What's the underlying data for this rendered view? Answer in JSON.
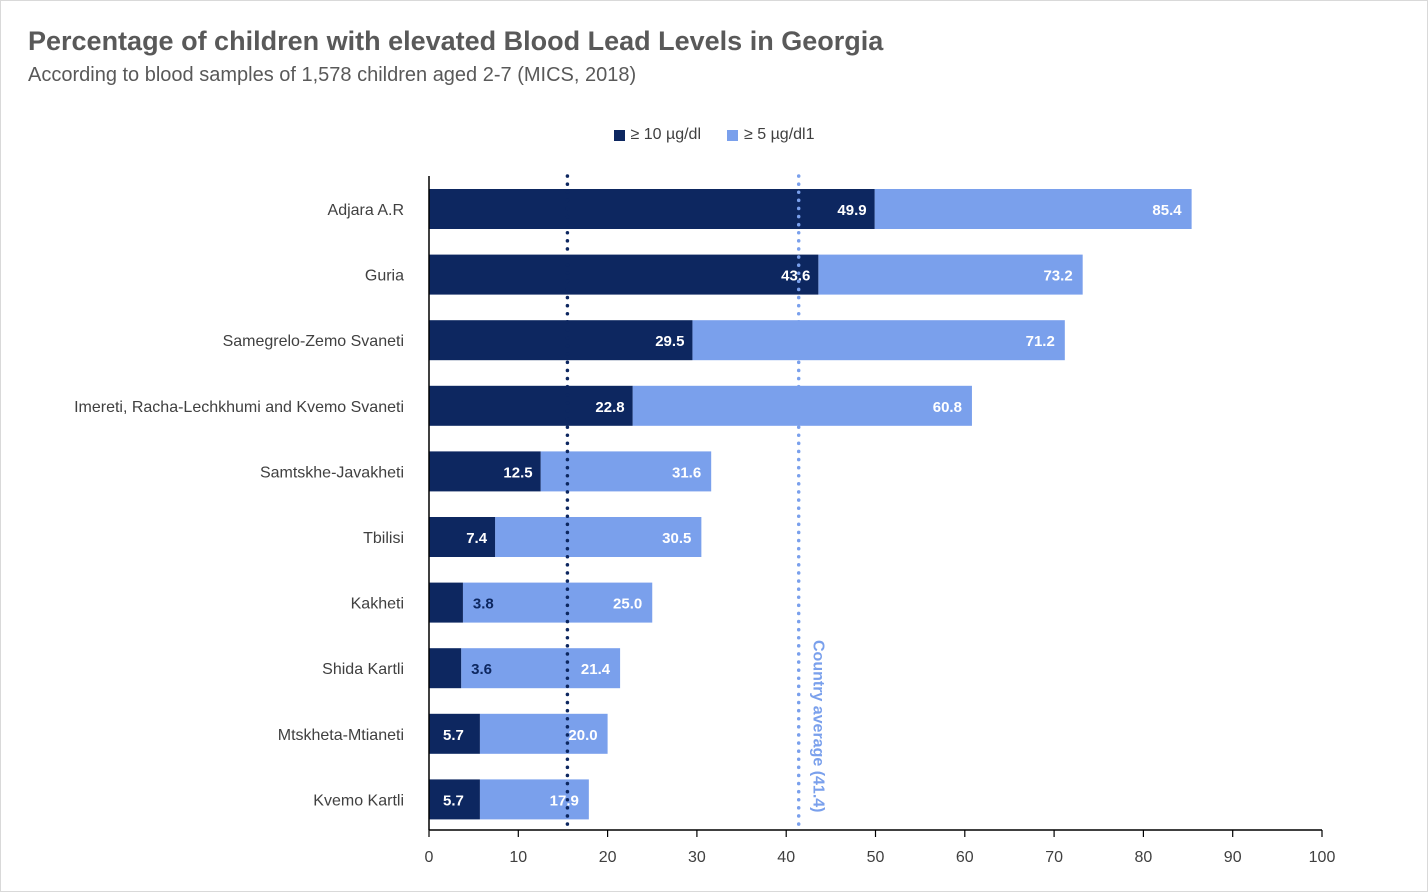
{
  "chart_data": {
    "type": "bar",
    "orientation": "horizontal",
    "title": "Percentage of children with elevated Blood Lead Levels in Georgia",
    "subtitle": "According to blood samples of 1,578 children aged 2-7 (MICS, 2018)",
    "categories": [
      "Adjara A.R",
      "Guria",
      "Samegrelo-Zemo Svaneti",
      "Imereti, Racha-Lechkhumi and Kvemo Svaneti",
      "Samtskhe-Javakheti",
      "Tbilisi",
      "Kakheti",
      "Shida Kartli",
      "Mtskheta-Mtianeti",
      "Kvemo Kartli"
    ],
    "series": [
      {
        "name": "≥ 10 µg/dl",
        "color": "#0d2760",
        "values": [
          49.9,
          43.6,
          29.5,
          22.8,
          12.5,
          7.4,
          3.8,
          3.6,
          5.7,
          5.7
        ],
        "labels": [
          "49.9",
          "43.6",
          "29.5",
          "22.8",
          "12.5",
          "7.4",
          "3.8",
          "3.6",
          "5.7",
          "5.7"
        ]
      },
      {
        "name": "≥ 5 µg/dl1",
        "color": "#7aa0ec",
        "values": [
          85.4,
          73.2,
          71.2,
          60.8,
          31.6,
          30.5,
          25.0,
          21.4,
          20.0,
          17.9
        ],
        "labels": [
          "85.4",
          "73.2",
          "71.2",
          "60.8",
          "31.6",
          "30.5",
          "25.0",
          "21.4",
          "20.0",
          "17.9"
        ]
      }
    ],
    "xlim": [
      0,
      100
    ],
    "xticks": [
      "0",
      "10",
      "20",
      "30",
      "40",
      "50",
      "60",
      "70",
      "80",
      "90",
      "100"
    ],
    "reference_lines": [
      {
        "value": 15.5,
        "color": "#0d2760",
        "label": ""
      },
      {
        "value": 41.4,
        "color": "#7aa0ec",
        "label": "Country average (41.4)"
      }
    ],
    "legend_position": "top",
    "grid": false
  }
}
